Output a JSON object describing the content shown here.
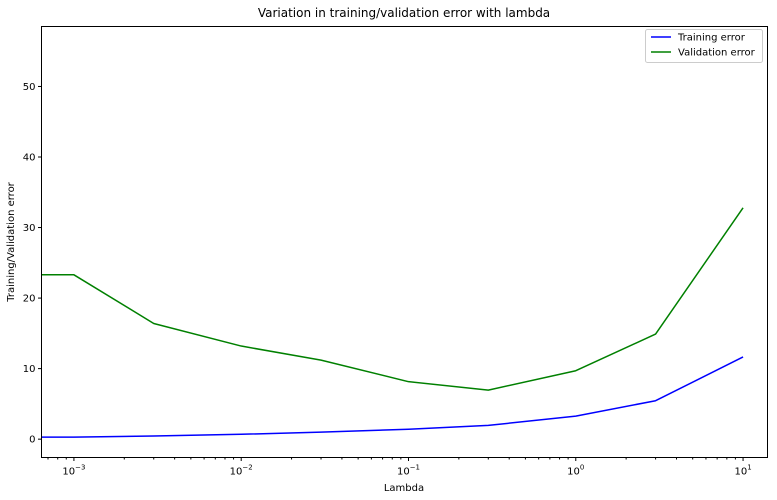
{
  "chart_data": {
    "type": "line",
    "title": "Variation in training/validation error with lambda",
    "xlabel": "Lambda",
    "ylabel": "Training/Validation error",
    "xscale": "log",
    "xlim": [
      0.00064,
      14
    ],
    "ylim": [
      -2.6,
      58.5
    ],
    "x": [
      0,
      0.001,
      0.003,
      0.01,
      0.03,
      0.1,
      0.3,
      1,
      3,
      10
    ],
    "x_tick_labels": [
      {
        "value": 0.001,
        "base": "10",
        "exp": "−3"
      },
      {
        "value": 0.01,
        "base": "10",
        "exp": "−2"
      },
      {
        "value": 0.1,
        "base": "10",
        "exp": "−1"
      },
      {
        "value": 1,
        "base": "10",
        "exp": "0"
      },
      {
        "value": 10,
        "base": "10",
        "exp": "1"
      }
    ],
    "y_ticks": [
      0,
      10,
      20,
      30,
      40,
      50
    ],
    "grid": false,
    "legend": "top-right",
    "series": [
      {
        "name": "Training error",
        "color": "#0000ff",
        "values": [
          0.29,
          0.29,
          0.45,
          0.69,
          1.0,
          1.4,
          1.95,
          3.27,
          5.45,
          11.65
        ]
      },
      {
        "name": "Validation error",
        "color": "#008000",
        "values": [
          23.3,
          23.3,
          16.4,
          13.2,
          11.2,
          8.15,
          6.95,
          9.7,
          14.9,
          32.8
        ]
      }
    ]
  }
}
